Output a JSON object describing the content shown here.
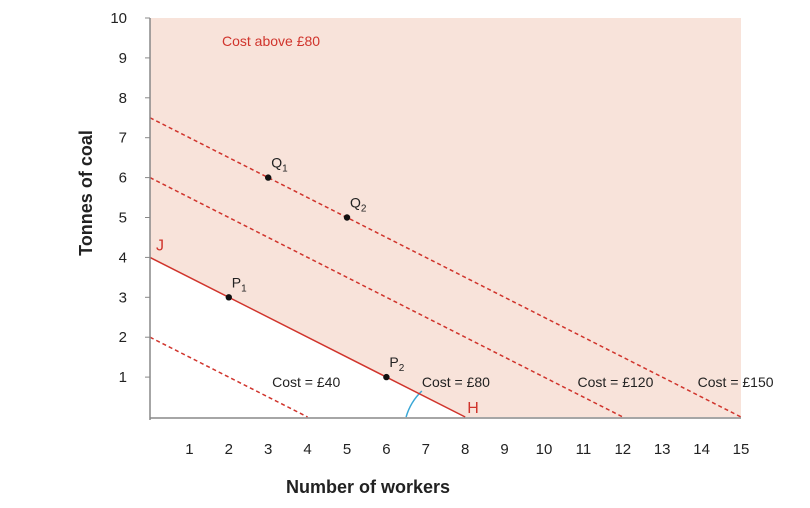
{
  "chart_data": {
    "type": "line",
    "title": "",
    "xlabel": "Number of workers",
    "ylabel": "Tonnes of coal",
    "xlim": [
      0,
      15
    ],
    "ylim": [
      0,
      10
    ],
    "x_ticks": [
      1,
      2,
      3,
      4,
      5,
      6,
      7,
      8,
      9,
      10,
      11,
      12,
      13,
      14,
      15
    ],
    "y_ticks": [
      1,
      2,
      3,
      4,
      5,
      6,
      7,
      8,
      9,
      10
    ],
    "grid": false,
    "region_label": "Cost above £80",
    "colors": {
      "accent": "#d0342c",
      "region_fill": "#f8e3da",
      "angle_arc": "#3aa7d6",
      "axis": "#888888"
    },
    "series": [
      {
        "name": "Cost = £40",
        "style": "dashed",
        "x": [
          0,
          4
        ],
        "y": [
          2,
          0
        ]
      },
      {
        "name": "Cost = £80",
        "style": "solid",
        "x": [
          0,
          8
        ],
        "y": [
          4,
          0
        ]
      },
      {
        "name": "Cost = £120",
        "style": "dashed",
        "x": [
          0,
          12
        ],
        "y": [
          6,
          0
        ]
      },
      {
        "name": "Cost = £150",
        "style": "dashed",
        "x": [
          0,
          15
        ],
        "y": [
          7.5,
          0
        ]
      }
    ],
    "line_labels": [
      {
        "text": "J",
        "x": 0,
        "y": 4
      },
      {
        "text": "H",
        "x": 8,
        "y": 0
      }
    ],
    "points": [
      {
        "label": "P",
        "sub": "1",
        "x": 2,
        "y": 3
      },
      {
        "label": "P",
        "sub": "2",
        "x": 6,
        "y": 1
      },
      {
        "label": "Q",
        "sub": "1",
        "x": 3,
        "y": 6
      },
      {
        "label": "Q",
        "sub": "2",
        "x": 5,
        "y": 5
      }
    ]
  }
}
